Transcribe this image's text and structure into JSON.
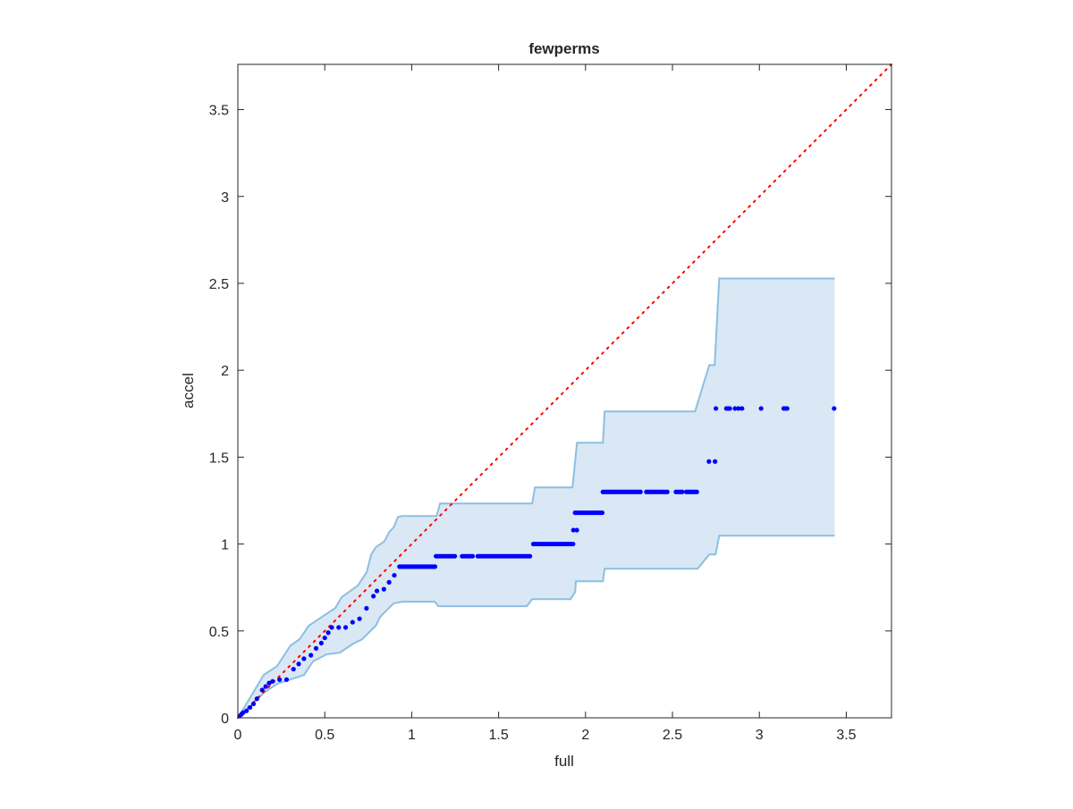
{
  "chart_data": {
    "type": "scatter",
    "title": "fewperms",
    "xlabel": "full",
    "ylabel": "accel",
    "xlim": [
      0,
      3.76
    ],
    "ylim": [
      0,
      3.76
    ],
    "xticks": [
      "0",
      "0.5",
      "1",
      "1.5",
      "2",
      "2.5",
      "3",
      "3.5"
    ],
    "yticks": [
      "0",
      "0.5",
      "1",
      "1.5",
      "2",
      "2.5",
      "3",
      "3.5"
    ],
    "grid": false,
    "colors": {
      "band_fill": "#d9e8f4",
      "band_edge": "#8dbfe0",
      "points": "#0000ff",
      "diagonal": "#ff0000"
    },
    "diagonal": {
      "style": "dotted",
      "from": [
        0,
        0
      ],
      "to": [
        3.76,
        3.76
      ]
    },
    "upper_bound": [
      [
        0,
        0
      ],
      [
        0.072,
        0.118
      ],
      [
        0.149,
        0.247
      ],
      [
        0.226,
        0.298
      ],
      [
        0.303,
        0.416
      ],
      [
        0.355,
        0.452
      ],
      [
        0.407,
        0.529
      ],
      [
        0.484,
        0.581
      ],
      [
        0.561,
        0.632
      ],
      [
        0.597,
        0.694
      ],
      [
        0.69,
        0.761
      ],
      [
        0.741,
        0.838
      ],
      [
        0.767,
        0.94
      ],
      [
        0.793,
        0.981
      ],
      [
        0.844,
        1.017
      ],
      [
        0.87,
        1.069
      ],
      [
        0.896,
        1.095
      ],
      [
        0.921,
        1.156
      ],
      [
        0.947,
        1.161
      ],
      [
        1.143,
        1.161
      ],
      [
        1.163,
        1.233
      ],
      [
        1.693,
        1.233
      ],
      [
        1.709,
        1.326
      ],
      [
        1.925,
        1.326
      ],
      [
        1.951,
        1.583
      ],
      [
        2.1,
        1.583
      ],
      [
        2.11,
        1.763
      ],
      [
        2.63,
        1.763
      ],
      [
        2.712,
        2.03
      ],
      [
        2.743,
        2.03
      ],
      [
        2.769,
        2.528
      ],
      [
        3.433,
        2.528
      ]
    ],
    "lower_bound": [
      [
        0,
        0
      ],
      [
        0.072,
        0.067
      ],
      [
        0.149,
        0.144
      ],
      [
        0.226,
        0.195
      ],
      [
        0.303,
        0.221
      ],
      [
        0.381,
        0.247
      ],
      [
        0.432,
        0.324
      ],
      [
        0.51,
        0.365
      ],
      [
        0.587,
        0.375
      ],
      [
        0.664,
        0.427
      ],
      [
        0.715,
        0.452
      ],
      [
        0.767,
        0.504
      ],
      [
        0.793,
        0.529
      ],
      [
        0.818,
        0.58
      ],
      [
        0.844,
        0.606
      ],
      [
        0.896,
        0.658
      ],
      [
        0.947,
        0.668
      ],
      [
        1.132,
        0.668
      ],
      [
        1.153,
        0.642
      ],
      [
        1.662,
        0.642
      ],
      [
        1.693,
        0.683
      ],
      [
        1.914,
        0.683
      ],
      [
        1.94,
        0.724
      ],
      [
        1.945,
        0.786
      ],
      [
        2.1,
        0.786
      ],
      [
        2.11,
        0.858
      ],
      [
        2.645,
        0.858
      ],
      [
        2.712,
        0.94
      ],
      [
        2.748,
        0.94
      ],
      [
        2.769,
        1.048
      ],
      [
        3.433,
        1.048
      ]
    ],
    "points": [
      [
        0.01,
        0.01
      ],
      [
        0.02,
        0.02
      ],
      [
        0.03,
        0.03
      ],
      [
        0.05,
        0.04
      ],
      [
        0.07,
        0.06
      ],
      [
        0.09,
        0.08
      ],
      [
        0.11,
        0.11
      ],
      [
        0.14,
        0.16
      ],
      [
        0.16,
        0.18
      ],
      [
        0.18,
        0.2
      ],
      [
        0.2,
        0.21
      ],
      [
        0.24,
        0.22
      ],
      [
        0.28,
        0.22
      ],
      [
        0.32,
        0.28
      ],
      [
        0.35,
        0.31
      ],
      [
        0.38,
        0.34
      ],
      [
        0.42,
        0.36
      ],
      [
        0.45,
        0.4
      ],
      [
        0.48,
        0.43
      ],
      [
        0.5,
        0.46
      ],
      [
        0.52,
        0.49
      ],
      [
        0.54,
        0.52
      ],
      [
        0.58,
        0.52
      ],
      [
        0.62,
        0.52
      ],
      [
        0.66,
        0.55
      ],
      [
        0.7,
        0.57
      ],
      [
        0.74,
        0.63
      ],
      [
        0.78,
        0.7
      ],
      [
        0.8,
        0.73
      ],
      [
        0.84,
        0.74
      ],
      [
        0.87,
        0.78
      ],
      [
        0.9,
        0.82
      ],
      [
        1.93,
        1.08
      ],
      [
        1.95,
        1.08
      ],
      [
        2.71,
        1.475
      ],
      [
        2.745,
        1.475
      ],
      [
        2.75,
        1.78
      ],
      [
        2.81,
        1.78
      ],
      [
        2.82,
        1.78
      ],
      [
        2.83,
        1.78
      ],
      [
        2.86,
        1.78
      ],
      [
        2.88,
        1.78
      ],
      [
        2.9,
        1.78
      ],
      [
        3.01,
        1.78
      ],
      [
        3.14,
        1.78
      ],
      [
        3.15,
        1.78
      ],
      [
        3.16,
        1.78
      ],
      [
        3.43,
        1.78
      ]
    ],
    "runs": [
      {
        "y": 0.87,
        "x": [
          0.93,
          1.14
        ]
      },
      {
        "y": 0.93,
        "x": [
          1.14,
          1.25
        ]
      },
      {
        "y": 0.93,
        "x": [
          1.29,
          1.36
        ]
      },
      {
        "y": 0.93,
        "x": [
          1.38,
          1.69
        ]
      },
      {
        "y": 1.0,
        "x": [
          1.7,
          1.93
        ]
      },
      {
        "y": 1.18,
        "x": [
          1.94,
          2.1
        ]
      },
      {
        "y": 1.3,
        "x": [
          2.1,
          2.32
        ]
      },
      {
        "y": 1.3,
        "x": [
          2.35,
          2.48
        ]
      },
      {
        "y": 1.3,
        "x": [
          2.52,
          2.56
        ]
      },
      {
        "y": 1.3,
        "x": [
          2.58,
          2.65
        ]
      }
    ]
  }
}
